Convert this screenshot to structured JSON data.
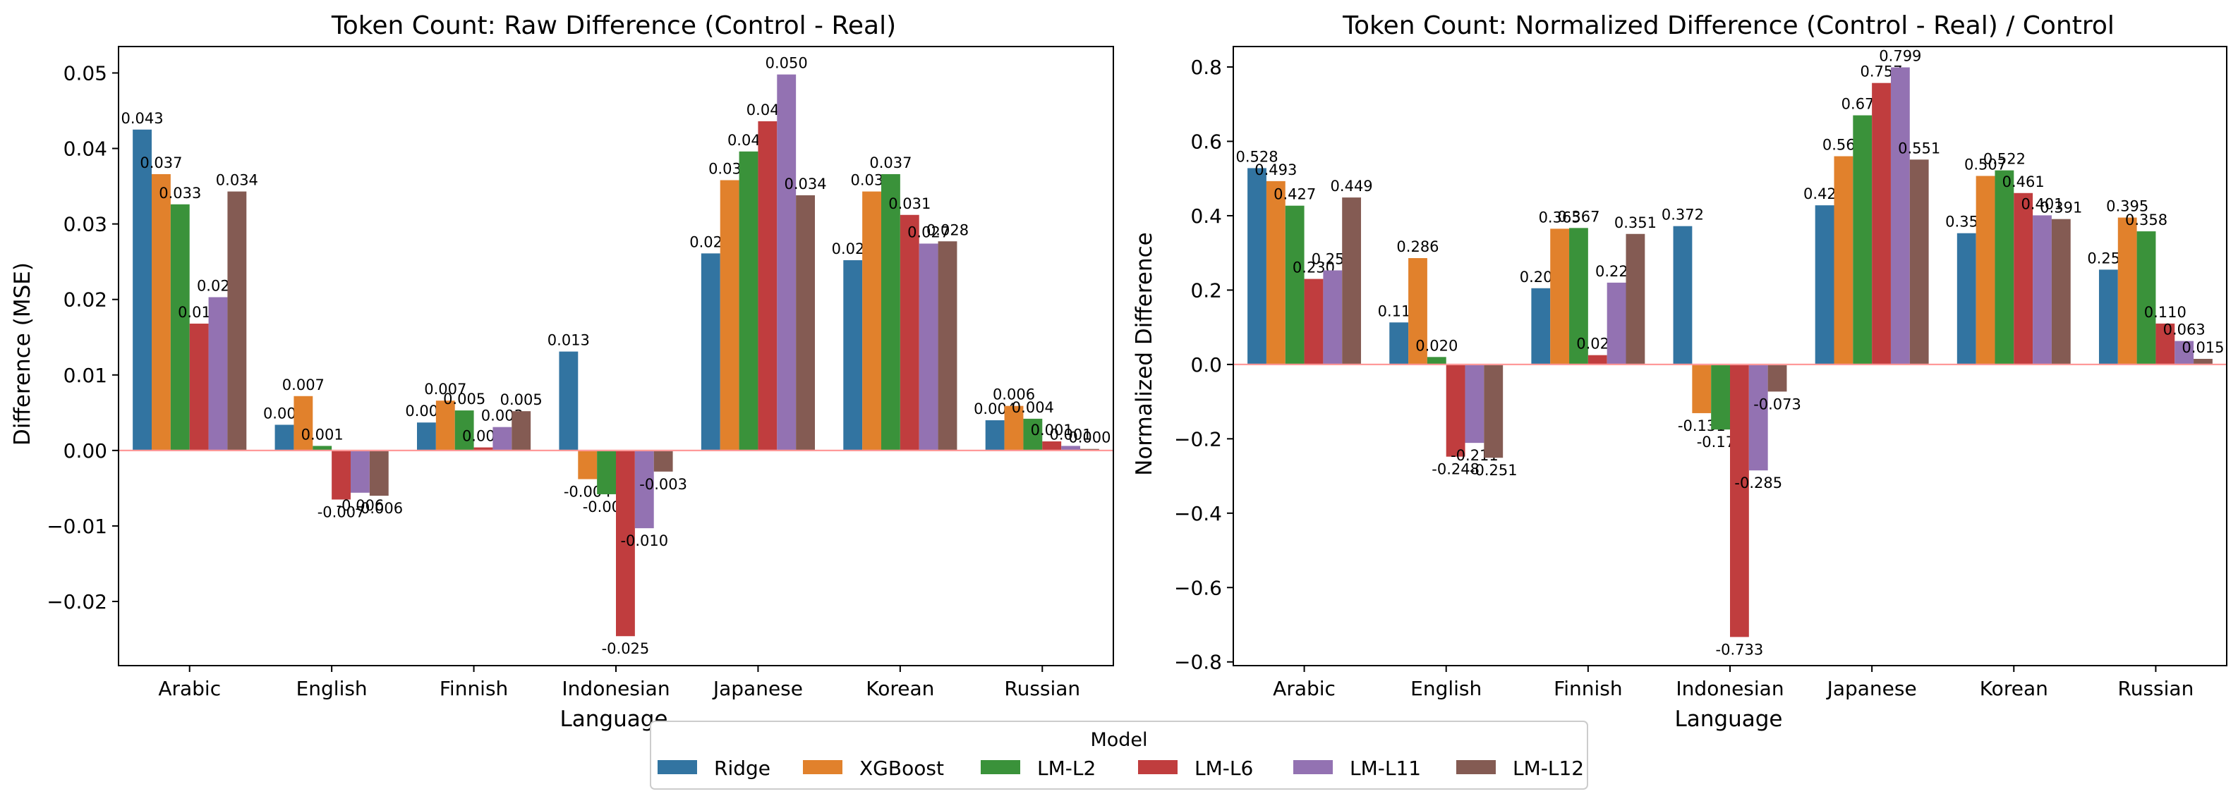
{
  "chart_data": [
    {
      "type": "bar",
      "title": "Token Count: Raw Difference (Control - Real)",
      "xlabel": "Language",
      "ylabel": "Difference (MSE)",
      "ylim": [
        -0.0285,
        0.0535
      ],
      "yticks": [
        -0.02,
        -0.01,
        0.0,
        0.01,
        0.02,
        0.03,
        0.04,
        0.05
      ],
      "ytick_labels": [
        "−0.02",
        "−0.01",
        "0.00",
        "0.01",
        "0.02",
        "0.03",
        "0.04",
        "0.05"
      ],
      "categories": [
        "Arabic",
        "English",
        "Finnish",
        "Indonesian",
        "Japanese",
        "Korean",
        "Russian"
      ],
      "series": [
        {
          "name": "Ridge",
          "values": [
            0.0425,
            0.0034,
            0.0037,
            0.0131,
            0.0261,
            0.0252,
            0.004
          ],
          "labels": [
            "0.043",
            "0.003",
            "0.004",
            "0.013",
            "0.026",
            "0.025",
            "0.004"
          ]
        },
        {
          "name": "XGBoost",
          "values": [
            0.0366,
            0.0072,
            0.0066,
            -0.0038,
            0.0358,
            0.0343,
            0.0059
          ],
          "labels": [
            "0.037",
            "0.007",
            "0.007",
            "-0.004",
            "0.036",
            "0.034",
            "0.006"
          ]
        },
        {
          "name": "LM-L2",
          "values": [
            0.0326,
            0.0006,
            0.0053,
            -0.0058,
            0.0396,
            0.0366,
            0.0042
          ],
          "labels": [
            "0.033",
            "0.001",
            "0.005",
            "-0.006",
            "0.040",
            "0.037",
            "0.004"
          ]
        },
        {
          "name": "LM-L6",
          "values": [
            0.0168,
            -0.0065,
            0.0004,
            -0.0246,
            0.0436,
            0.0312,
            0.0012
          ],
          "labels": [
            "0.017",
            "-0.007",
            "0.000",
            "-0.025",
            "0.044",
            "0.031",
            "0.001"
          ]
        },
        {
          "name": "LM-L11",
          "values": [
            0.0203,
            -0.0056,
            0.0031,
            -0.0103,
            0.0498,
            0.0274,
            0.0006
          ],
          "labels": [
            "0.020",
            "-0.006",
            "0.003",
            "-0.010",
            "0.050",
            "0.027",
            "0.001"
          ]
        },
        {
          "name": "LM-L12",
          "values": [
            0.0343,
            -0.006,
            0.0052,
            -0.0028,
            0.0338,
            0.0277,
            0.0002
          ],
          "labels": [
            "0.034",
            "-0.006",
            "0.005",
            "-0.003",
            "0.034",
            "0.028",
            "0.000"
          ]
        }
      ],
      "reference_line": 0,
      "grid": false
    },
    {
      "type": "bar",
      "title": "Token Count: Normalized Difference (Control - Real) / Control",
      "xlabel": "Language",
      "ylabel": "Normalized Difference",
      "ylim": [
        -0.81,
        0.855
      ],
      "yticks": [
        -0.8,
        -0.6,
        -0.4,
        -0.2,
        0.0,
        0.2,
        0.4,
        0.6,
        0.8
      ],
      "ytick_labels": [
        "−0.8",
        "−0.6",
        "−0.4",
        "−0.2",
        "0.0",
        "0.2",
        "0.4",
        "0.6",
        "0.8"
      ],
      "categories": [
        "Arabic",
        "English",
        "Finnish",
        "Indonesian",
        "Japanese",
        "Korean",
        "Russian"
      ],
      "series": [
        {
          "name": "Ridge",
          "values": [
            0.528,
            0.113,
            0.205,
            0.372,
            0.428,
            0.353,
            0.255
          ],
          "labels": [
            "0.528",
            "0.113",
            "0.205",
            "0.372",
            "0.428",
            "0.353",
            "0.255"
          ]
        },
        {
          "name": "XGBoost",
          "values": [
            0.493,
            0.286,
            0.365,
            -0.131,
            0.56,
            0.507,
            0.395
          ],
          "labels": [
            "0.493",
            "0.286",
            "0.365",
            "-0.131",
            "0.560",
            "0.507",
            "0.395"
          ]
        },
        {
          "name": "LM-L2",
          "values": [
            0.427,
            0.02,
            0.367,
            -0.175,
            0.67,
            0.522,
            0.358
          ],
          "labels": [
            "0.427",
            "0.020",
            "0.367",
            "-0.175",
            "0.670",
            "0.522",
            "0.358"
          ]
        },
        {
          "name": "LM-L6",
          "values": [
            0.23,
            -0.248,
            0.025,
            -0.733,
            0.757,
            0.461,
            0.11
          ],
          "labels": [
            "0.230",
            "-0.248",
            "0.025",
            "-0.733",
            "0.757",
            "0.461",
            "0.110"
          ]
        },
        {
          "name": "LM-L11",
          "values": [
            0.253,
            -0.211,
            0.22,
            -0.285,
            0.799,
            0.401,
            0.063
          ],
          "labels": [
            "0.253",
            "-0.211",
            "0.220",
            "-0.285",
            "0.799",
            "0.401",
            "0.063"
          ]
        },
        {
          "name": "LM-L12",
          "values": [
            0.449,
            -0.251,
            0.351,
            -0.073,
            0.551,
            0.391,
            0.015
          ],
          "labels": [
            "0.449",
            "-0.251",
            "0.351",
            "-0.073",
            "0.551",
            "0.391",
            "0.015"
          ]
        }
      ],
      "reference_line": 0,
      "grid": false
    }
  ],
  "legend": {
    "title": "Model",
    "placement": "bottom-center",
    "items": [
      "Ridge",
      "XGBoost",
      "LM-L2",
      "LM-L6",
      "LM-L11",
      "LM-L12"
    ]
  },
  "colors": {
    "Ridge": "#3274a1",
    "XGBoost": "#e1812c",
    "LM-L2": "#3a923a",
    "LM-L6": "#c03d3e",
    "LM-L11": "#9372b2",
    "LM-L12": "#845b53",
    "reference_line": "#ff9999"
  }
}
